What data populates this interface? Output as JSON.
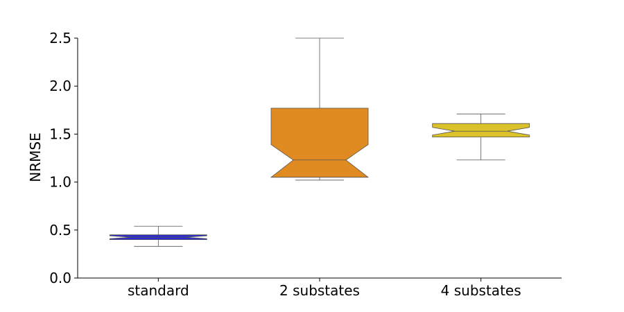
{
  "chart_data": {
    "type": "box",
    "title": "",
    "xlabel": "",
    "ylabel": "NRMSE",
    "ylim": [
      0,
      2.5
    ],
    "yticks": [
      "0.0",
      "0.5",
      "1.0",
      "1.5",
      "2.0",
      "2.5"
    ],
    "notched": true,
    "categories": [
      "standard",
      "2 substates",
      "4 substates"
    ],
    "boxes": [
      {
        "category": "standard",
        "whisker_low": 0.33,
        "q1": 0.4,
        "median": 0.425,
        "q3": 0.45,
        "whisker_high": 0.54,
        "notch_low": 0.41,
        "notch_high": 0.44,
        "color": "#2b2bd0"
      },
      {
        "category": "2 substates",
        "whisker_low": 1.02,
        "q1": 1.05,
        "median": 1.23,
        "q3": 1.77,
        "whisker_high": 2.5,
        "notch_low": 1.05,
        "notch_high": 1.39,
        "color": "#e08a22"
      },
      {
        "category": "4 substates",
        "whisker_low": 1.23,
        "q1": 1.47,
        "median": 1.53,
        "q3": 1.61,
        "whisker_high": 1.71,
        "notch_low": 1.49,
        "notch_high": 1.57,
        "color": "#dcc22a"
      }
    ]
  }
}
